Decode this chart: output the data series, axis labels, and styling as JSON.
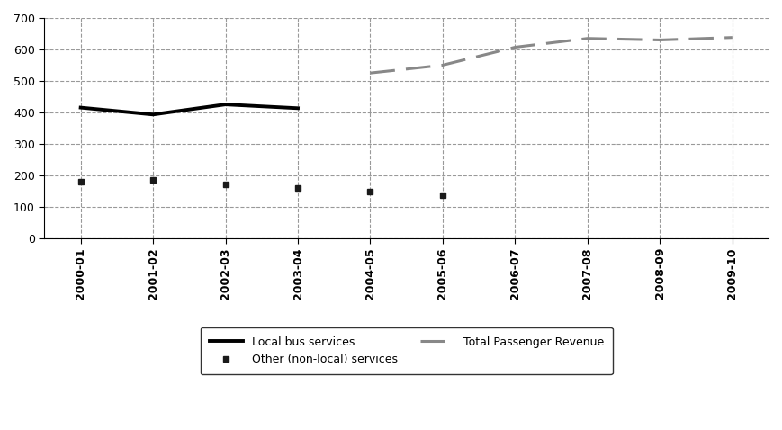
{
  "x_labels": [
    "2000-01",
    "2001-02",
    "2002-03",
    "2003-04",
    "2004-05",
    "2005-06",
    "2006-07",
    "2007-08",
    "2008-09",
    "2009-10"
  ],
  "local_bus": [
    415,
    393,
    425,
    413,
    null,
    null,
    null,
    null,
    null,
    null
  ],
  "other_nonlocal": [
    180,
    185,
    172,
    158,
    147,
    135,
    null,
    null,
    null,
    null
  ],
  "total_passenger": [
    null,
    null,
    null,
    null,
    525,
    550,
    607,
    635,
    630,
    638
  ],
  "ylim": [
    0,
    700
  ],
  "yticks": [
    0,
    100,
    200,
    300,
    400,
    500,
    600,
    700
  ],
  "local_bus_color": "#000000",
  "other_nonlocal_color": "#1a1a1a",
  "total_passenger_color": "#888888",
  "background_color": "#ffffff",
  "grid_color": "#999999",
  "legend_labels": [
    "Local bus services",
    "Other (non-local) services",
    "Total Passenger Revenue"
  ]
}
